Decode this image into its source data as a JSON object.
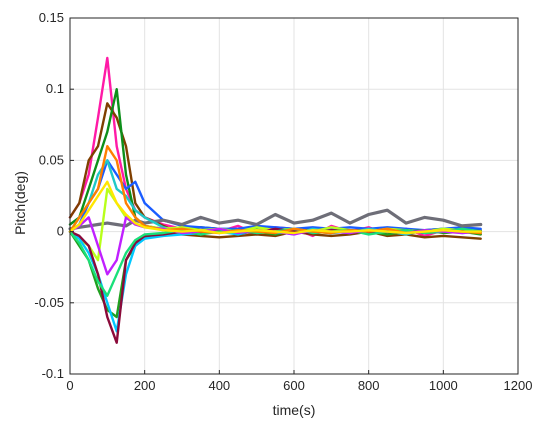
{
  "chart_data": {
    "type": "line",
    "xlabel": "time(s)",
    "ylabel": "Pitch(deg)",
    "xlim": [
      0,
      1200
    ],
    "ylim": [
      -0.1,
      0.15
    ],
    "xticks": [
      0,
      200,
      400,
      600,
      800,
      1000,
      1200
    ],
    "yticks": [
      -0.1,
      -0.05,
      0,
      0.05,
      0.1,
      0.15
    ],
    "xtick_labels": [
      "0",
      "200",
      "400",
      "600",
      "800",
      "1000",
      "1200"
    ],
    "ytick_labels": [
      "-0.1",
      "-0.05",
      "0",
      "0.05",
      "0.1",
      "0.15"
    ],
    "grid": true,
    "legend": "none",
    "x": [
      0,
      25,
      50,
      75,
      100,
      125,
      150,
      175,
      200,
      250,
      300,
      350,
      400,
      450,
      500,
      550,
      600,
      650,
      700,
      750,
      800,
      850,
      900,
      950,
      1000,
      1050,
      1100
    ],
    "series": [
      {
        "color": "#ff1aa6",
        "values": [
          0.01,
          0.02,
          0.04,
          0.08,
          0.122,
          0.06,
          0.03,
          0.015,
          0.01,
          0.005,
          0.002,
          0.003,
          0.0,
          0.004,
          -0.002,
          0.003,
          0.002,
          -0.003,
          0.004,
          0.0,
          0.003,
          -0.002,
          0.002,
          -0.003,
          0.001,
          0.002,
          -0.002
        ]
      },
      {
        "color": "#7f3f00",
        "values": [
          0.01,
          0.02,
          0.05,
          0.06,
          0.09,
          0.08,
          0.06,
          0.02,
          0.01,
          0.004,
          -0.002,
          -0.003,
          -0.004,
          -0.003,
          -0.002,
          -0.003,
          0.0,
          -0.002,
          -0.003,
          -0.002,
          0.0,
          -0.003,
          -0.002,
          -0.004,
          -0.003,
          -0.004,
          -0.005
        ]
      },
      {
        "color": "#0d8f1a",
        "values": [
          0.005,
          0.01,
          0.03,
          0.05,
          0.07,
          0.1,
          0.04,
          0.01,
          0.004,
          0.002,
          0.001,
          0.003,
          0.002,
          0.0,
          0.002,
          0.001,
          0.0,
          0.002,
          0.001,
          0.0,
          0.002,
          0.001,
          0.0,
          0.001,
          0.002,
          0.0,
          0.001
        ]
      },
      {
        "color": "#1a5cff",
        "values": [
          0.0,
          0.005,
          0.02,
          0.03,
          0.05,
          0.04,
          0.03,
          0.035,
          0.02,
          0.008,
          0.004,
          0.003,
          0.002,
          0.002,
          0.004,
          0.003,
          0.002,
          0.003,
          0.002,
          0.003,
          0.002,
          0.003,
          0.002,
          0.001,
          0.002,
          0.003,
          0.002
        ]
      },
      {
        "color": "#6e6e78",
        "values": [
          0.002,
          0.003,
          0.004,
          0.005,
          0.006,
          0.005,
          0.004,
          0.008,
          0.006,
          0.008,
          0.005,
          0.01,
          0.006,
          0.008,
          0.005,
          0.012,
          0.006,
          0.008,
          0.013,
          0.006,
          0.012,
          0.015,
          0.006,
          0.01,
          0.008,
          0.004,
          0.005
        ]
      },
      {
        "color": "#1fc8c8",
        "values": [
          0.0,
          0.01,
          0.02,
          0.04,
          0.05,
          0.03,
          0.025,
          0.015,
          0.01,
          0.003,
          0.0,
          -0.002,
          0.002,
          -0.001,
          0.003,
          0.0,
          -0.002,
          0.002,
          0.0,
          -0.001,
          0.002,
          0.0,
          -0.002,
          0.001,
          0.0,
          0.001,
          -0.001
        ]
      },
      {
        "color": "#b8ff1a",
        "values": [
          0.0,
          -0.005,
          -0.01,
          -0.02,
          0.03,
          0.02,
          0.01,
          0.005,
          0.004,
          0.002,
          0.003,
          0.001,
          0.002,
          0.0,
          0.003,
          0.001,
          0.002,
          0.0,
          0.003,
          0.001,
          0.0,
          0.002,
          0.001,
          0.0,
          0.002,
          0.001,
          0.0
        ]
      },
      {
        "color": "#20a020",
        "values": [
          0.0,
          -0.01,
          -0.02,
          -0.04,
          -0.055,
          -0.06,
          -0.02,
          -0.01,
          -0.004,
          -0.002,
          0.0,
          -0.002,
          0.001,
          -0.001,
          0.0,
          -0.002,
          0.001,
          0.0,
          -0.001,
          0.001,
          0.0,
          -0.002,
          0.0,
          0.001,
          -0.001,
          0.0,
          -0.002
        ]
      },
      {
        "color": "#00c8ff",
        "values": [
          0.0,
          -0.005,
          -0.015,
          -0.03,
          -0.05,
          -0.07,
          -0.03,
          -0.01,
          -0.005,
          -0.003,
          -0.002,
          -0.001,
          0.0,
          -0.002,
          0.001,
          -0.001,
          0.0,
          0.001,
          -0.001,
          0.0,
          0.001,
          0.0,
          -0.001,
          0.0,
          0.001,
          -0.001,
          0.0
        ]
      },
      {
        "color": "#8b0a3a",
        "values": [
          0.0,
          -0.003,
          -0.01,
          -0.03,
          -0.06,
          -0.078,
          -0.02,
          -0.008,
          -0.003,
          -0.002,
          0.0,
          -0.001,
          0.001,
          0.0,
          -0.001,
          0.002,
          0.0,
          -0.001,
          0.001,
          0.0,
          -0.001,
          0.0,
          0.001,
          -0.001,
          0.0,
          0.001,
          0.0
        ]
      },
      {
        "color": "#19e07a",
        "values": [
          0.0,
          -0.008,
          -0.02,
          -0.035,
          -0.045,
          -0.03,
          -0.015,
          -0.006,
          -0.002,
          -0.001,
          0.001,
          -0.002,
          0.0,
          0.001,
          -0.001,
          0.0,
          0.002,
          -0.001,
          0.0,
          0.001,
          -0.002,
          0.0,
          0.001,
          -0.001,
          0.0,
          0.002,
          0.0
        ]
      },
      {
        "color": "#c020ff",
        "values": [
          0.0,
          0.004,
          0.01,
          -0.01,
          -0.03,
          -0.02,
          0.01,
          0.005,
          0.003,
          0.002,
          -0.001,
          0.0,
          0.002,
          -0.001,
          0.001,
          0.0,
          -0.002,
          0.001,
          0.0,
          -0.001,
          0.001,
          0.0,
          -0.001,
          0.001,
          0.0,
          -0.001,
          0.0
        ]
      },
      {
        "color": "#ff7f00",
        "values": [
          0.0,
          0.01,
          0.02,
          0.03,
          0.06,
          0.05,
          0.02,
          0.01,
          0.004,
          0.001,
          0.002,
          0.0,
          -0.001,
          0.001,
          0.0,
          -0.001,
          0.002,
          0.0,
          -0.001,
          0.001,
          0.0,
          0.002,
          -0.001,
          0.0,
          0.001,
          0.0,
          -0.001
        ]
      },
      {
        "color": "#ffe600",
        "values": [
          0.0,
          0.005,
          0.015,
          0.025,
          0.035,
          0.02,
          0.012,
          0.006,
          0.003,
          0.001,
          0.0,
          0.001,
          -0.001,
          0.0,
          0.001,
          0.0,
          -0.001,
          0.001,
          0.0,
          0.0,
          0.001,
          0.0,
          -0.001,
          0.0,
          0.001,
          0.0,
          0.0
        ]
      }
    ]
  }
}
